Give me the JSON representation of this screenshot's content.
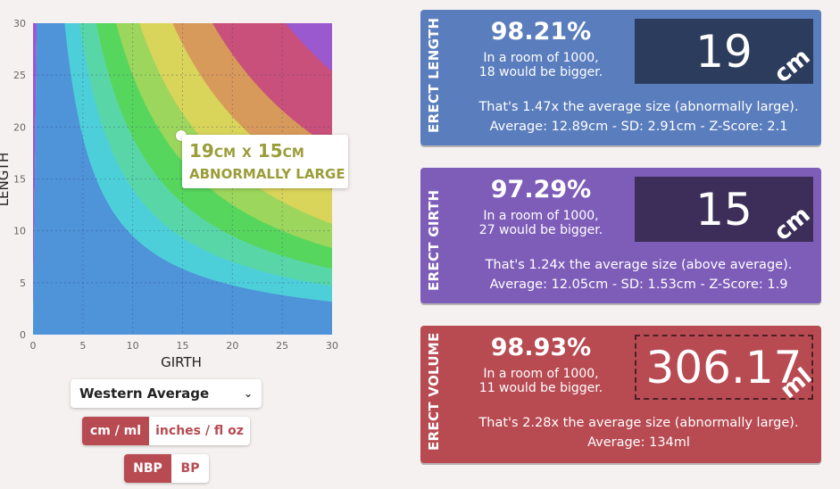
{
  "chart": {
    "xlabel": "GIRTH",
    "ylabel": "LENGTH",
    "xticks": [
      "0",
      "5",
      "10",
      "15",
      "20",
      "25",
      "30"
    ],
    "yticks": [
      "0",
      "5",
      "10",
      "15",
      "20",
      "25",
      "30"
    ],
    "xlim": [
      0,
      30
    ],
    "ylim": [
      0,
      30
    ],
    "band_colors": [
      "#4f93d8",
      "#4dcfda",
      "#58d6a8",
      "#57d65e",
      "#9dd65c",
      "#d9d45a",
      "#d89a5a",
      "#c9507a",
      "#9b59d0"
    ],
    "marker": {
      "x": 15,
      "y": 19
    },
    "tooltip": {
      "length_value": "19",
      "length_unit": "CM",
      "separator": "X",
      "girth_value": "15",
      "girth_unit": "CM",
      "category": "ABNORMALLY LARGE"
    }
  },
  "controls": {
    "population_select": "Western Average",
    "unit_metric": "cm / ml",
    "unit_imperial": "inches / fl oz",
    "measure_nbp": "NBP",
    "measure_bp": "BP"
  },
  "cards": {
    "length": {
      "label": "ERECT LENGTH",
      "percentile": "98.21%",
      "room_line1": "In a room of 1000,",
      "room_line2": "18 would be bigger.",
      "value": "19",
      "unit": "cm",
      "comparison": "That's 1.47x the average size (abnormally large).",
      "stats": "Average: 12.89cm - SD: 2.91cm - Z-Score: 2.1"
    },
    "girth": {
      "label": "ERECT GIRTH",
      "percentile": "97.29%",
      "room_line1": "In a room of 1000,",
      "room_line2": "27 would be bigger.",
      "value": "15",
      "unit": "cm",
      "comparison": "That's 1.24x the average size (above average).",
      "stats": "Average: 12.05cm - SD: 1.53cm - Z-Score: 1.9"
    },
    "volume": {
      "label": "ERECT VOLUME",
      "percentile": "98.93%",
      "room_line1": "In a room of 1000,",
      "room_line2": "11 would be bigger.",
      "value": "306.17",
      "unit": "ml",
      "comparison": "That's 2.28x the average size (abnormally large).",
      "stats": "Average: 134ml"
    }
  }
}
